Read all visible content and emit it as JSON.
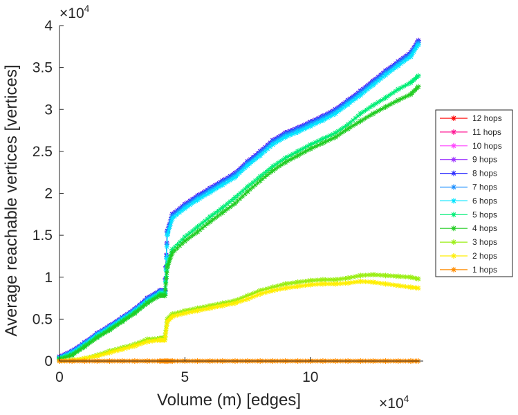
{
  "chart_data": {
    "type": "line",
    "title": "",
    "xlabel": "Volume (m) [edges]",
    "ylabel": "Average reachable vertices [vertices]",
    "x_multiplier": "×10",
    "x_exponent": "4",
    "y_multiplier": "×10",
    "y_exponent": "4",
    "xlim": [
      0,
      14.5
    ],
    "ylim": [
      0,
      4
    ],
    "x_ticks": [
      0,
      5,
      10
    ],
    "x_tick_labels": [
      "0",
      "5",
      "10"
    ],
    "y_ticks": [
      0,
      0.5,
      1,
      1.5,
      2,
      2.5,
      3,
      3.5,
      4
    ],
    "y_tick_labels": [
      "0",
      "0.5",
      "1",
      "1.5",
      "2",
      "2.5",
      "3",
      "3.5",
      "4"
    ],
    "grid": false,
    "legend_position": "right",
    "x": [
      0,
      0.5,
      1,
      1.5,
      2,
      2.5,
      3,
      3.5,
      4,
      4.2,
      4.3,
      4.5,
      5,
      5.5,
      6,
      6.5,
      7,
      7.5,
      8,
      8.5,
      9,
      9.5,
      10,
      10.5,
      11,
      11.5,
      12,
      12.5,
      13,
      13.5,
      14,
      14.3
    ],
    "series": [
      {
        "name": "12 hops",
        "color": "#ff0000",
        "values": [
          0.05,
          0.12,
          0.22,
          0.33,
          0.42,
          0.52,
          0.62,
          0.75,
          0.84,
          0.84,
          1.55,
          1.75,
          1.87,
          1.97,
          2.06,
          2.15,
          2.24,
          2.38,
          2.5,
          2.63,
          2.72,
          2.78,
          2.85,
          2.92,
          3.0,
          3.11,
          3.22,
          3.34,
          3.46,
          3.57,
          3.68,
          3.82
        ]
      },
      {
        "name": "11 hops",
        "color": "#ff1493",
        "values": [
          0.05,
          0.12,
          0.22,
          0.33,
          0.42,
          0.52,
          0.62,
          0.75,
          0.84,
          0.84,
          1.55,
          1.75,
          1.87,
          1.97,
          2.06,
          2.15,
          2.24,
          2.38,
          2.5,
          2.63,
          2.72,
          2.78,
          2.85,
          2.92,
          3.0,
          3.11,
          3.22,
          3.34,
          3.46,
          3.57,
          3.68,
          3.82
        ]
      },
      {
        "name": "10 hops",
        "color": "#ff44ff",
        "values": [
          0.05,
          0.12,
          0.22,
          0.33,
          0.42,
          0.52,
          0.62,
          0.75,
          0.84,
          0.84,
          1.55,
          1.75,
          1.87,
          1.97,
          2.06,
          2.15,
          2.24,
          2.38,
          2.5,
          2.63,
          2.72,
          2.78,
          2.85,
          2.92,
          3.0,
          3.11,
          3.22,
          3.34,
          3.46,
          3.57,
          3.68,
          3.82
        ]
      },
      {
        "name": "9 hops",
        "color": "#9b30ff",
        "values": [
          0.05,
          0.12,
          0.22,
          0.33,
          0.42,
          0.52,
          0.62,
          0.75,
          0.84,
          0.84,
          1.55,
          1.75,
          1.87,
          1.97,
          2.06,
          2.15,
          2.24,
          2.38,
          2.5,
          2.63,
          2.72,
          2.78,
          2.85,
          2.92,
          3.0,
          3.11,
          3.22,
          3.34,
          3.46,
          3.57,
          3.68,
          3.82
        ]
      },
      {
        "name": "8 hops",
        "color": "#3030ff",
        "values": [
          0.05,
          0.12,
          0.22,
          0.33,
          0.42,
          0.52,
          0.62,
          0.75,
          0.84,
          0.84,
          1.55,
          1.75,
          1.87,
          1.97,
          2.06,
          2.15,
          2.24,
          2.38,
          2.5,
          2.63,
          2.72,
          2.78,
          2.85,
          2.92,
          3.0,
          3.11,
          3.22,
          3.34,
          3.46,
          3.57,
          3.68,
          3.82
        ]
      },
      {
        "name": "7 hops",
        "color": "#1e90ff",
        "values": [
          0.04,
          0.11,
          0.21,
          0.32,
          0.41,
          0.51,
          0.61,
          0.74,
          0.83,
          0.83,
          1.53,
          1.73,
          1.85,
          1.95,
          2.04,
          2.13,
          2.22,
          2.36,
          2.48,
          2.61,
          2.7,
          2.76,
          2.83,
          2.9,
          2.98,
          3.09,
          3.2,
          3.32,
          3.44,
          3.55,
          3.66,
          3.8
        ]
      },
      {
        "name": "6 hops",
        "color": "#00e5ff",
        "values": [
          0.04,
          0.1,
          0.2,
          0.31,
          0.4,
          0.5,
          0.6,
          0.72,
          0.81,
          0.81,
          1.5,
          1.7,
          1.82,
          1.92,
          2.01,
          2.1,
          2.19,
          2.33,
          2.45,
          2.58,
          2.67,
          2.73,
          2.8,
          2.87,
          2.95,
          3.06,
          3.17,
          3.29,
          3.41,
          3.52,
          3.63,
          3.77
        ]
      },
      {
        "name": "5 hops",
        "color": "#00ee76",
        "values": [
          0.03,
          0.08,
          0.18,
          0.29,
          0.38,
          0.48,
          0.58,
          0.7,
          0.8,
          0.8,
          1.15,
          1.33,
          1.48,
          1.6,
          1.72,
          1.83,
          1.95,
          2.08,
          2.2,
          2.32,
          2.42,
          2.5,
          2.58,
          2.65,
          2.72,
          2.82,
          2.95,
          3.05,
          3.14,
          3.24,
          3.32,
          3.4
        ]
      },
      {
        "name": "4 hops",
        "color": "#22cc22",
        "values": [
          0.02,
          0.07,
          0.17,
          0.28,
          0.37,
          0.47,
          0.57,
          0.69,
          0.78,
          0.78,
          1.12,
          1.29,
          1.43,
          1.54,
          1.66,
          1.77,
          1.88,
          2.02,
          2.15,
          2.27,
          2.37,
          2.45,
          2.53,
          2.6,
          2.67,
          2.77,
          2.86,
          2.95,
          3.03,
          3.11,
          3.18,
          3.27
        ]
      },
      {
        "name": "3 hops",
        "color": "#99ee11",
        "values": [
          0.0,
          0.01,
          0.03,
          0.07,
          0.12,
          0.16,
          0.2,
          0.26,
          0.27,
          0.28,
          0.5,
          0.56,
          0.6,
          0.63,
          0.66,
          0.69,
          0.72,
          0.78,
          0.84,
          0.88,
          0.92,
          0.94,
          0.96,
          0.97,
          0.97,
          0.99,
          1.02,
          1.03,
          1.02,
          1.01,
          1.0,
          0.98
        ]
      },
      {
        "name": "2 hops",
        "color": "#ffee00",
        "values": [
          0.0,
          0.01,
          0.03,
          0.06,
          0.1,
          0.14,
          0.18,
          0.23,
          0.25,
          0.25,
          0.47,
          0.53,
          0.57,
          0.6,
          0.63,
          0.66,
          0.69,
          0.74,
          0.8,
          0.84,
          0.87,
          0.89,
          0.91,
          0.92,
          0.92,
          0.93,
          0.95,
          0.94,
          0.92,
          0.9,
          0.88,
          0.87
        ]
      },
      {
        "name": "1 hops",
        "color": "#ff8c00",
        "values": [
          0.0,
          0.0,
          0.0,
          0.0,
          0.0,
          0.0,
          0.0,
          0.0,
          0.0,
          0.0,
          0.0,
          0.0,
          0.0,
          0.0,
          0.0,
          0.0,
          0.0,
          0.0,
          0.0,
          0.0,
          0.0,
          0.0,
          0.0,
          0.0,
          0.0,
          0.0,
          0.0,
          0.0,
          0.0,
          0.0,
          0.0,
          0.0
        ]
      }
    ]
  }
}
